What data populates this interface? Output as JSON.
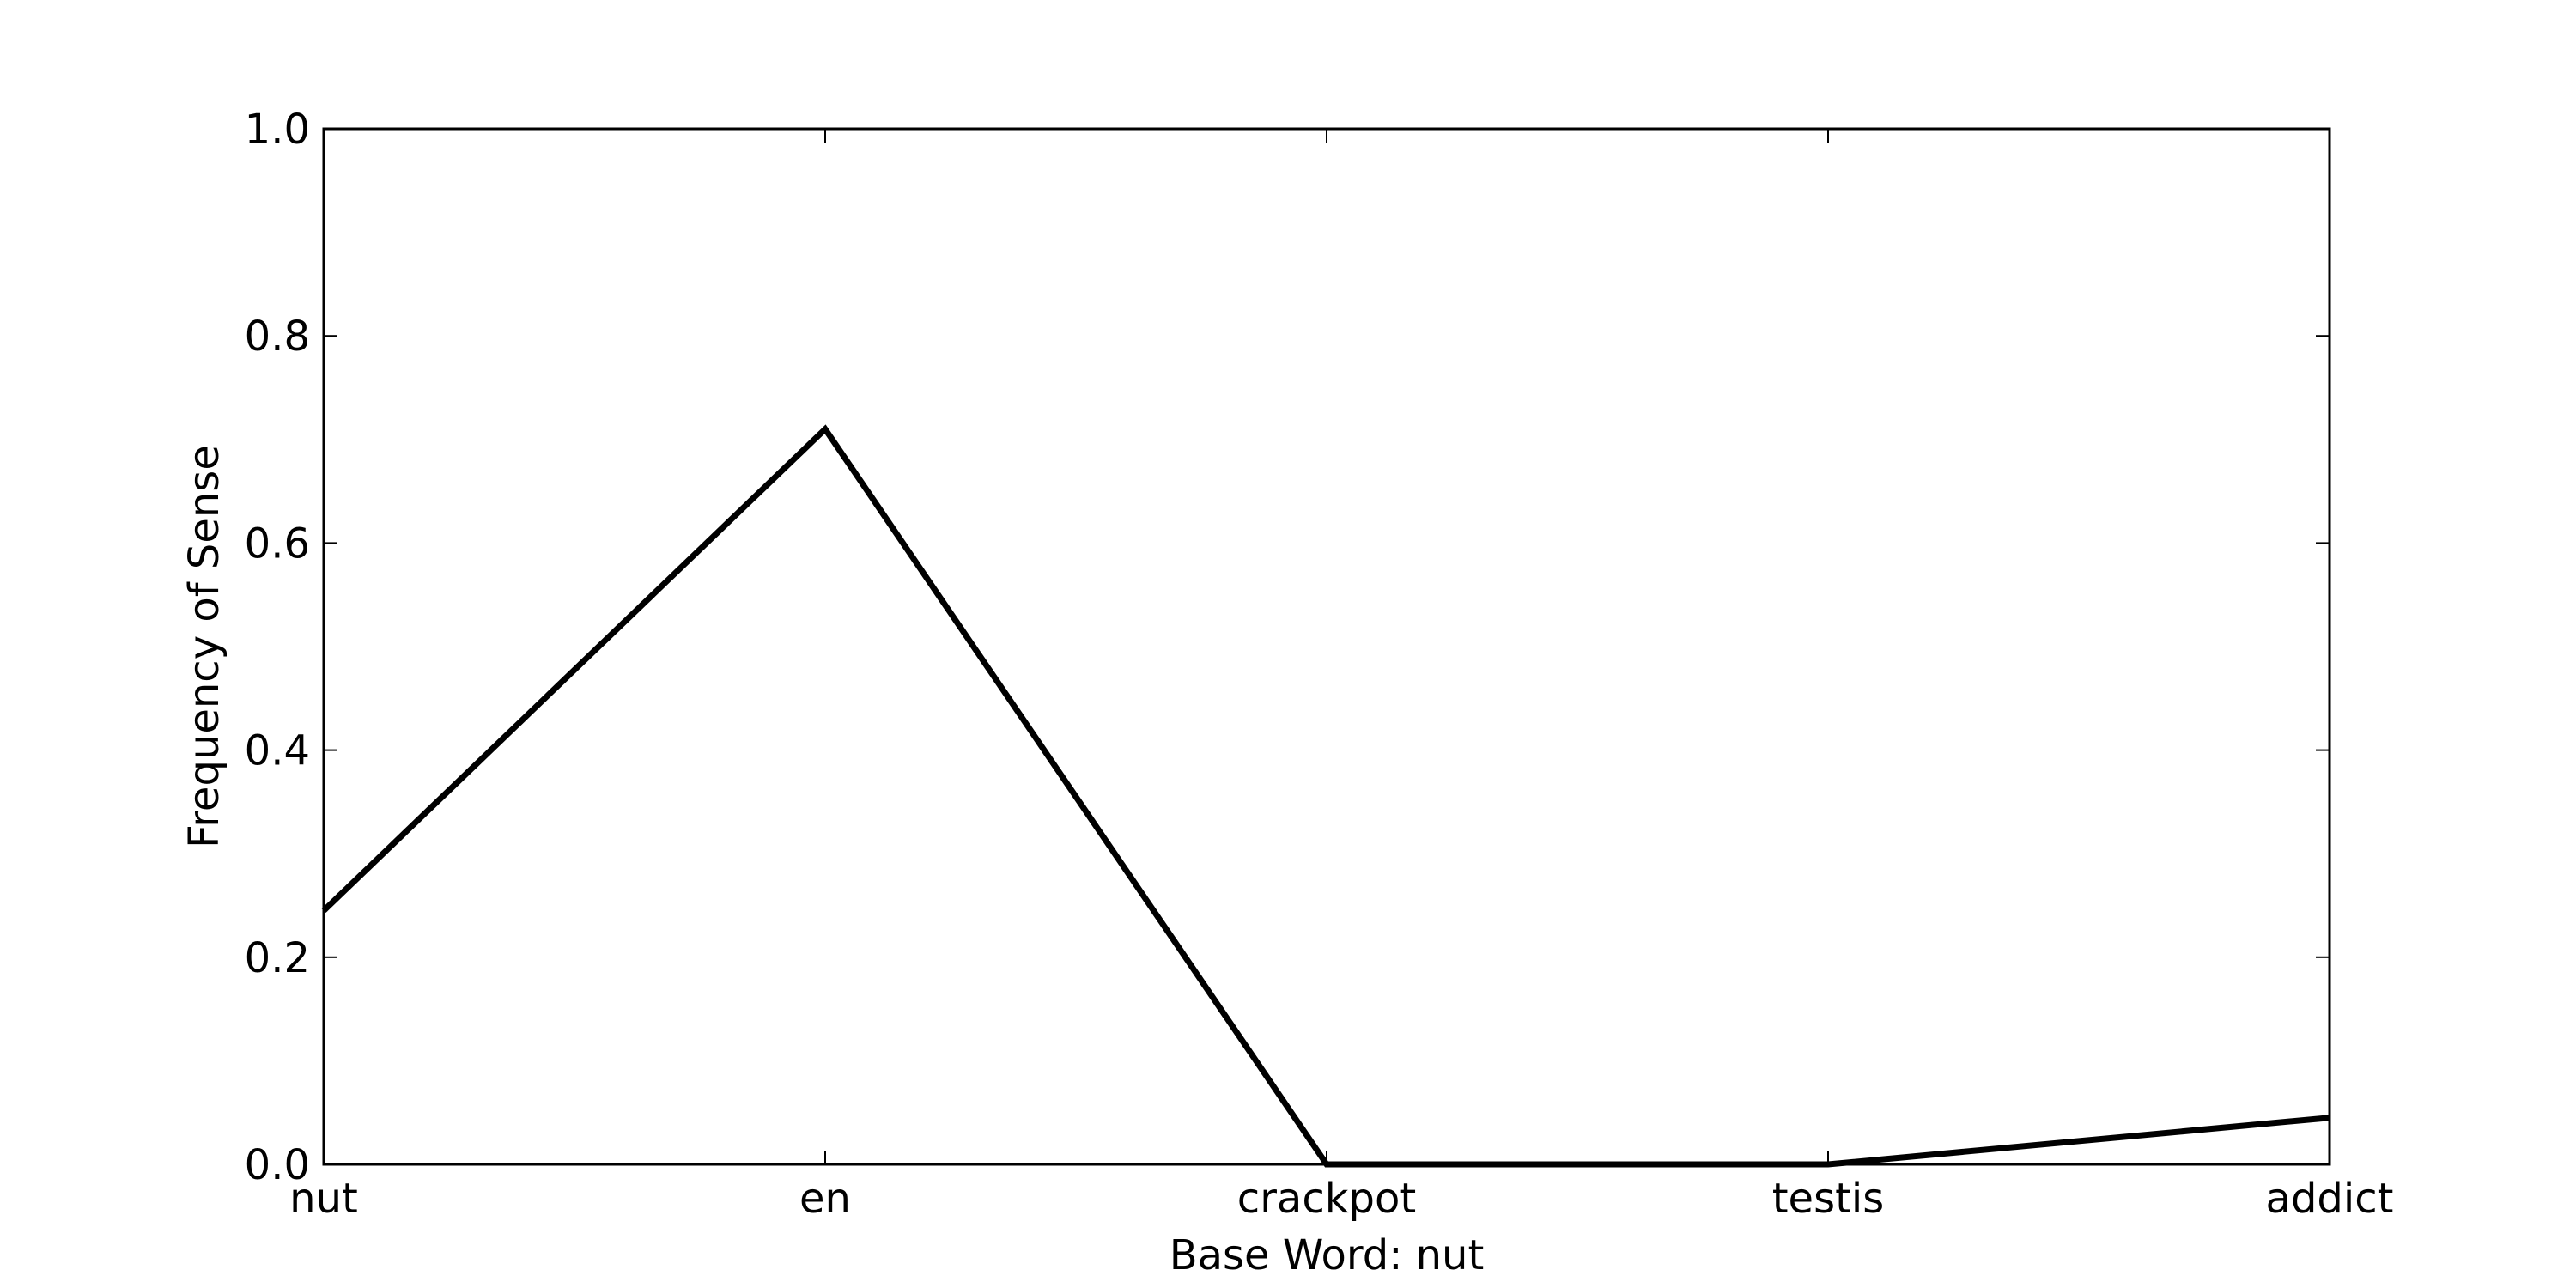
{
  "chart_data": {
    "type": "line",
    "title": "",
    "xlabel": "Base Word: nut",
    "ylabel": "Frequency of Sense",
    "categories": [
      "nut",
      "en",
      "crackpot",
      "testis",
      "addict"
    ],
    "series": [
      {
        "values": [
          0.245,
          0.71,
          0.0,
          0.0,
          0.045
        ]
      }
    ],
    "ylim": [
      0,
      1.0
    ],
    "yticks": [
      "0.0",
      "0.2",
      "0.4",
      "0.6",
      "0.8",
      "1.0"
    ],
    "grid": false,
    "line_color": "#000000"
  }
}
